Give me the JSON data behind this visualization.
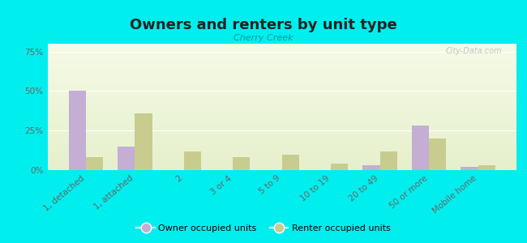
{
  "title": "Owners and renters by unit type",
  "subtitle": "Cherry Creek",
  "categories": [
    "1, detached",
    "1, attached",
    "2",
    "3 or 4",
    "5 to 9",
    "10 to 19",
    "20 to 49",
    "50 or more",
    "Mobile home"
  ],
  "owner_values": [
    50,
    15,
    0,
    0,
    0,
    0,
    3,
    28,
    2
  ],
  "renter_values": [
    8,
    36,
    12,
    8,
    10,
    4,
    12,
    20,
    3
  ],
  "owner_color": "#c4aed4",
  "renter_color": "#c8cc8f",
  "background_color": "#00eeee",
  "ylim": [
    0,
    80
  ],
  "yticks": [
    0,
    25,
    50,
    75
  ],
  "ytick_labels": [
    "0%",
    "25%",
    "50%",
    "75%"
  ],
  "bar_width": 0.35,
  "legend_owner": "Owner occupied units",
  "legend_renter": "Renter occupied units",
  "watermark": "City-Data.com",
  "subtitle_color": "#009999",
  "title_color": "#222222",
  "tick_label_color": "#666666"
}
